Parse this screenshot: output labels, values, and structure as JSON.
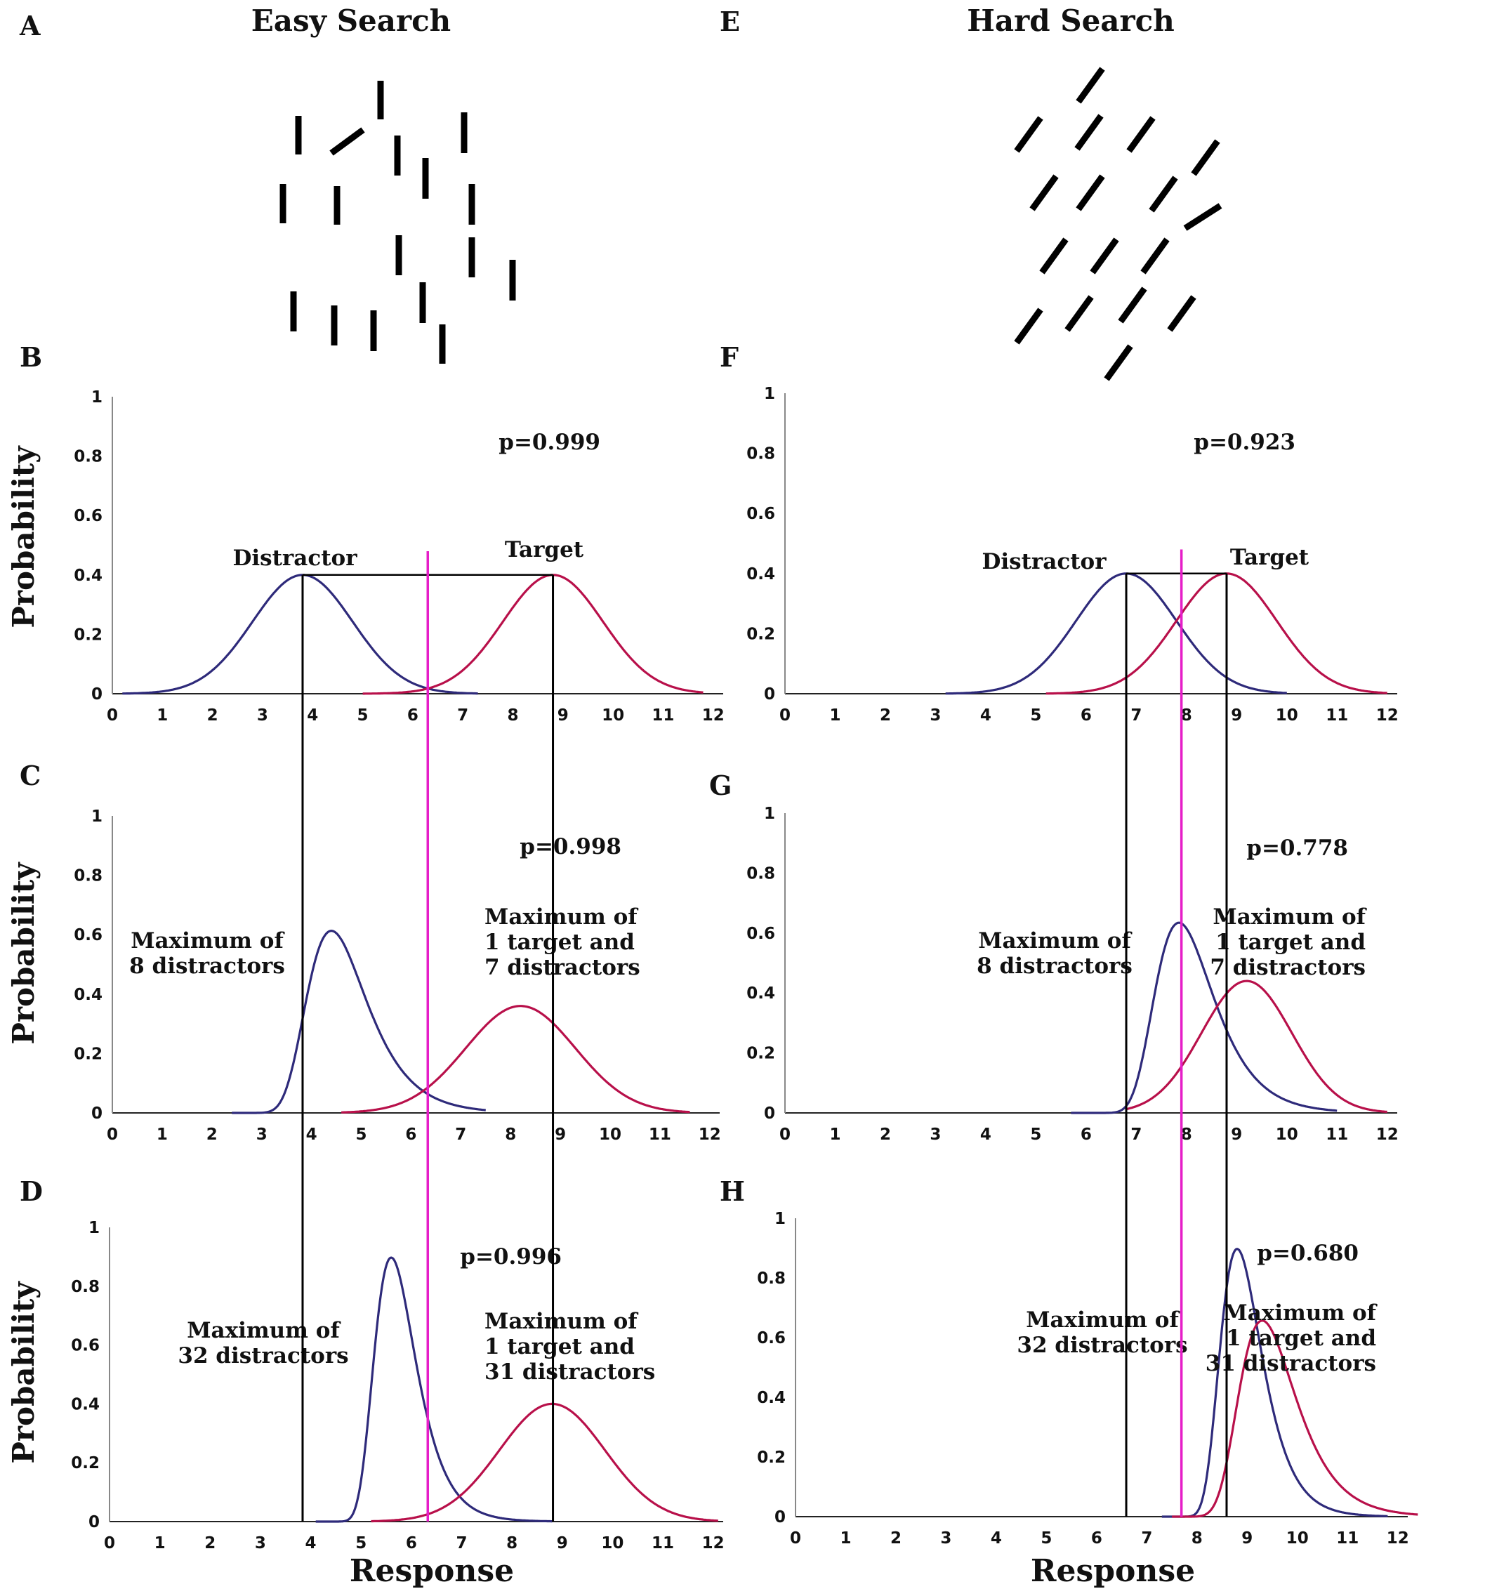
{
  "figure": {
    "titles": {
      "left": "Easy Search",
      "right": "Hard Search"
    },
    "panel_letters": [
      "A",
      "B",
      "C",
      "D",
      "E",
      "F",
      "G",
      "H"
    ],
    "colors": {
      "distractor": "#2e2a7a",
      "target": "#b8104a",
      "criterion": "#e61ec8",
      "reference": "#000000"
    }
  },
  "chart_data": [
    {
      "id": "B",
      "type": "line",
      "ylabel": "Probability",
      "xlabel": "",
      "x_ticks": [
        "0",
        "1",
        "2",
        "3",
        "4",
        "5",
        "6",
        "7",
        "8",
        "9",
        "10",
        "11",
        "12"
      ],
      "y_ticks": [
        "0",
        "0.2",
        "0.4",
        "0.6",
        "0.8",
        "1"
      ],
      "xlim": [
        0,
        12.2
      ],
      "ylim": [
        0,
        1
      ],
      "p_label": "p=0.999",
      "annotations": [
        "Distractor",
        "Target"
      ],
      "series": [
        {
          "role": "distractor",
          "shape": "normal",
          "mu": 3.8,
          "sd": 1.0,
          "peak": 0.4,
          "range": [
            0.2,
            7.3
          ]
        },
        {
          "role": "target",
          "shape": "normal",
          "mu": 8.8,
          "sd": 1.0,
          "peak": 0.4,
          "range": [
            5.0,
            11.8
          ]
        }
      ]
    },
    {
      "id": "C",
      "type": "line",
      "ylabel": "Probability",
      "xlabel": "",
      "x_ticks": [
        "0",
        "1",
        "2",
        "3",
        "4",
        "5",
        "6",
        "7",
        "8",
        "9",
        "10",
        "11",
        "12"
      ],
      "y_ticks": [
        "0",
        "0.2",
        "0.4",
        "0.6",
        "0.8",
        "1"
      ],
      "xlim": [
        0,
        12.2
      ],
      "ylim": [
        0,
        1
      ],
      "p_label": "p=0.998",
      "annotations": [
        "Maximum of\n8 distractors",
        "Maximum of\n1 target and\n7 distractors"
      ],
      "series": [
        {
          "role": "distractor",
          "shape": "gumbel",
          "mu": 4.4,
          "beta": 0.6,
          "range": [
            2.4,
            7.5
          ]
        },
        {
          "role": "target",
          "shape": "normal",
          "mu": 8.2,
          "sd": 1.1,
          "peak": 0.36,
          "range": [
            4.6,
            11.6
          ]
        }
      ]
    },
    {
      "id": "D",
      "type": "line",
      "ylabel": "Probability",
      "xlabel": "Response",
      "x_ticks": [
        "0",
        "1",
        "2",
        "3",
        "4",
        "5",
        "6",
        "7",
        "8",
        "9",
        "10",
        "11",
        "12"
      ],
      "y_ticks": [
        "0",
        "0.2",
        "0.4",
        "0.6",
        "0.8",
        "1"
      ],
      "xlim": [
        0,
        12.2
      ],
      "ylim": [
        0,
        1
      ],
      "p_label": "p=0.996",
      "annotations": [
        "Maximum of\n32 distractors",
        "Maximum of\n1 target and\n31 distractors"
      ],
      "series": [
        {
          "role": "distractor",
          "shape": "gumbel",
          "mu": 5.6,
          "beta": 0.41,
          "range": [
            4.1,
            8.8
          ]
        },
        {
          "role": "target",
          "shape": "normal",
          "mu": 8.8,
          "sd": 1.05,
          "peak": 0.4,
          "range": [
            5.2,
            12.1
          ]
        }
      ]
    },
    {
      "id": "F",
      "type": "line",
      "ylabel": "",
      "xlabel": "",
      "x_ticks": [
        "0",
        "1",
        "2",
        "3",
        "4",
        "5",
        "6",
        "7",
        "8",
        "9",
        "10",
        "11",
        "12"
      ],
      "y_ticks": [
        "0",
        "0.2",
        "0.4",
        "0.6",
        "0.8",
        "1"
      ],
      "xlim": [
        0,
        12.2
      ],
      "ylim": [
        0,
        1
      ],
      "p_label": "p=0.923",
      "annotations": [
        "Distractor",
        "Target"
      ],
      "series": [
        {
          "role": "distractor",
          "shape": "normal",
          "mu": 6.8,
          "sd": 1.0,
          "peak": 0.4,
          "range": [
            3.2,
            10.0
          ]
        },
        {
          "role": "target",
          "shape": "normal",
          "mu": 8.8,
          "sd": 1.0,
          "peak": 0.4,
          "range": [
            5.2,
            12.0
          ]
        }
      ]
    },
    {
      "id": "G",
      "type": "line",
      "ylabel": "",
      "xlabel": "",
      "x_ticks": [
        "0",
        "1",
        "2",
        "3",
        "4",
        "5",
        "6",
        "7",
        "8",
        "9",
        "10",
        "11",
        "12"
      ],
      "y_ticks": [
        "0",
        "0.2",
        "0.4",
        "0.6",
        "0.8",
        "1"
      ],
      "xlim": [
        0,
        12.2
      ],
      "ylim": [
        0,
        1
      ],
      "p_label": "p=0.778",
      "annotations": [
        "Maximum of\n8 distractors",
        "Maximum of\n1 target and\n7 distractors"
      ],
      "series": [
        {
          "role": "distractor",
          "shape": "gumbel",
          "mu": 7.85,
          "beta": 0.58,
          "range": [
            5.7,
            11.0
          ]
        },
        {
          "role": "target",
          "shape": "normal",
          "mu": 9.2,
          "sd": 0.9,
          "peak": 0.44,
          "range": [
            6.8,
            12.0
          ]
        }
      ]
    },
    {
      "id": "H",
      "type": "line",
      "ylabel": "",
      "xlabel": "Response",
      "x_ticks": [
        "0",
        "1",
        "2",
        "3",
        "4",
        "5",
        "6",
        "7",
        "8",
        "9",
        "10",
        "11",
        "12"
      ],
      "y_ticks": [
        "0",
        "0.2",
        "0.4",
        "0.6",
        "0.8",
        "1"
      ],
      "xlim": [
        0,
        12.2
      ],
      "ylim": [
        0,
        1
      ],
      "p_label": "p=0.680",
      "annotations": [
        "Maximum of\n32 distractors",
        "Maximum of\n1 target and\n31 distractors"
      ],
      "series": [
        {
          "role": "distractor",
          "shape": "gumbel",
          "mu": 8.8,
          "beta": 0.41,
          "range": [
            7.3,
            11.8
          ]
        },
        {
          "role": "target",
          "shape": "gumbel",
          "mu": 9.3,
          "beta": 0.56,
          "range": [
            7.5,
            12.4
          ]
        }
      ]
    }
  ],
  "reference_lines": {
    "easy": {
      "distractor_mean": 3.8,
      "target_mean": 8.8,
      "criterion": 6.3
    },
    "hard": {
      "distractor_mean": 6.8,
      "target_mean": 8.8,
      "criterion": 7.9
    }
  }
}
